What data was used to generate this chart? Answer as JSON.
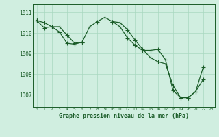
{
  "title": "Graphe pression niveau de la mer (hPa)",
  "background_color": "#d0eee0",
  "grid_color": "#a8d8c0",
  "line_color": "#1a5c28",
  "x_labels": [
    "0",
    "1",
    "2",
    "3",
    "4",
    "5",
    "6",
    "7",
    "8",
    "9",
    "10",
    "11",
    "12",
    "13",
    "14",
    "15",
    "16",
    "17",
    "18",
    "19",
    "20",
    "21",
    "22",
    "23"
  ],
  "ylim": [
    1006.4,
    1011.4
  ],
  "yticks": [
    1007,
    1008,
    1009,
    1010,
    1011
  ],
  "line1": [
    1010.6,
    1010.5,
    1010.3,
    1010.3,
    1009.9,
    1009.5,
    1009.55,
    1010.3,
    1010.55,
    1010.75,
    1010.55,
    1010.3,
    1009.75,
    1009.4,
    1009.15,
    1009.15,
    1009.2,
    1008.7,
    1007.2,
    1006.85,
    1006.85,
    1007.15,
    1007.75,
    null
  ],
  "line2": [
    1010.6,
    1010.25,
    1010.3,
    1010.05,
    1009.5,
    1009.45,
    1009.55,
    null,
    null,
    null,
    null,
    null,
    null,
    null,
    null,
    null,
    null,
    null,
    null,
    null,
    null,
    null,
    null,
    null
  ],
  "line3": [
    1010.6,
    null,
    null,
    null,
    null,
    null,
    null,
    null,
    null,
    null,
    1010.55,
    1010.5,
    1010.15,
    1009.65,
    1009.2,
    1008.8,
    1008.6,
    1008.5,
    1007.45,
    1006.85,
    1006.85,
    1007.15,
    1008.35,
    null
  ]
}
